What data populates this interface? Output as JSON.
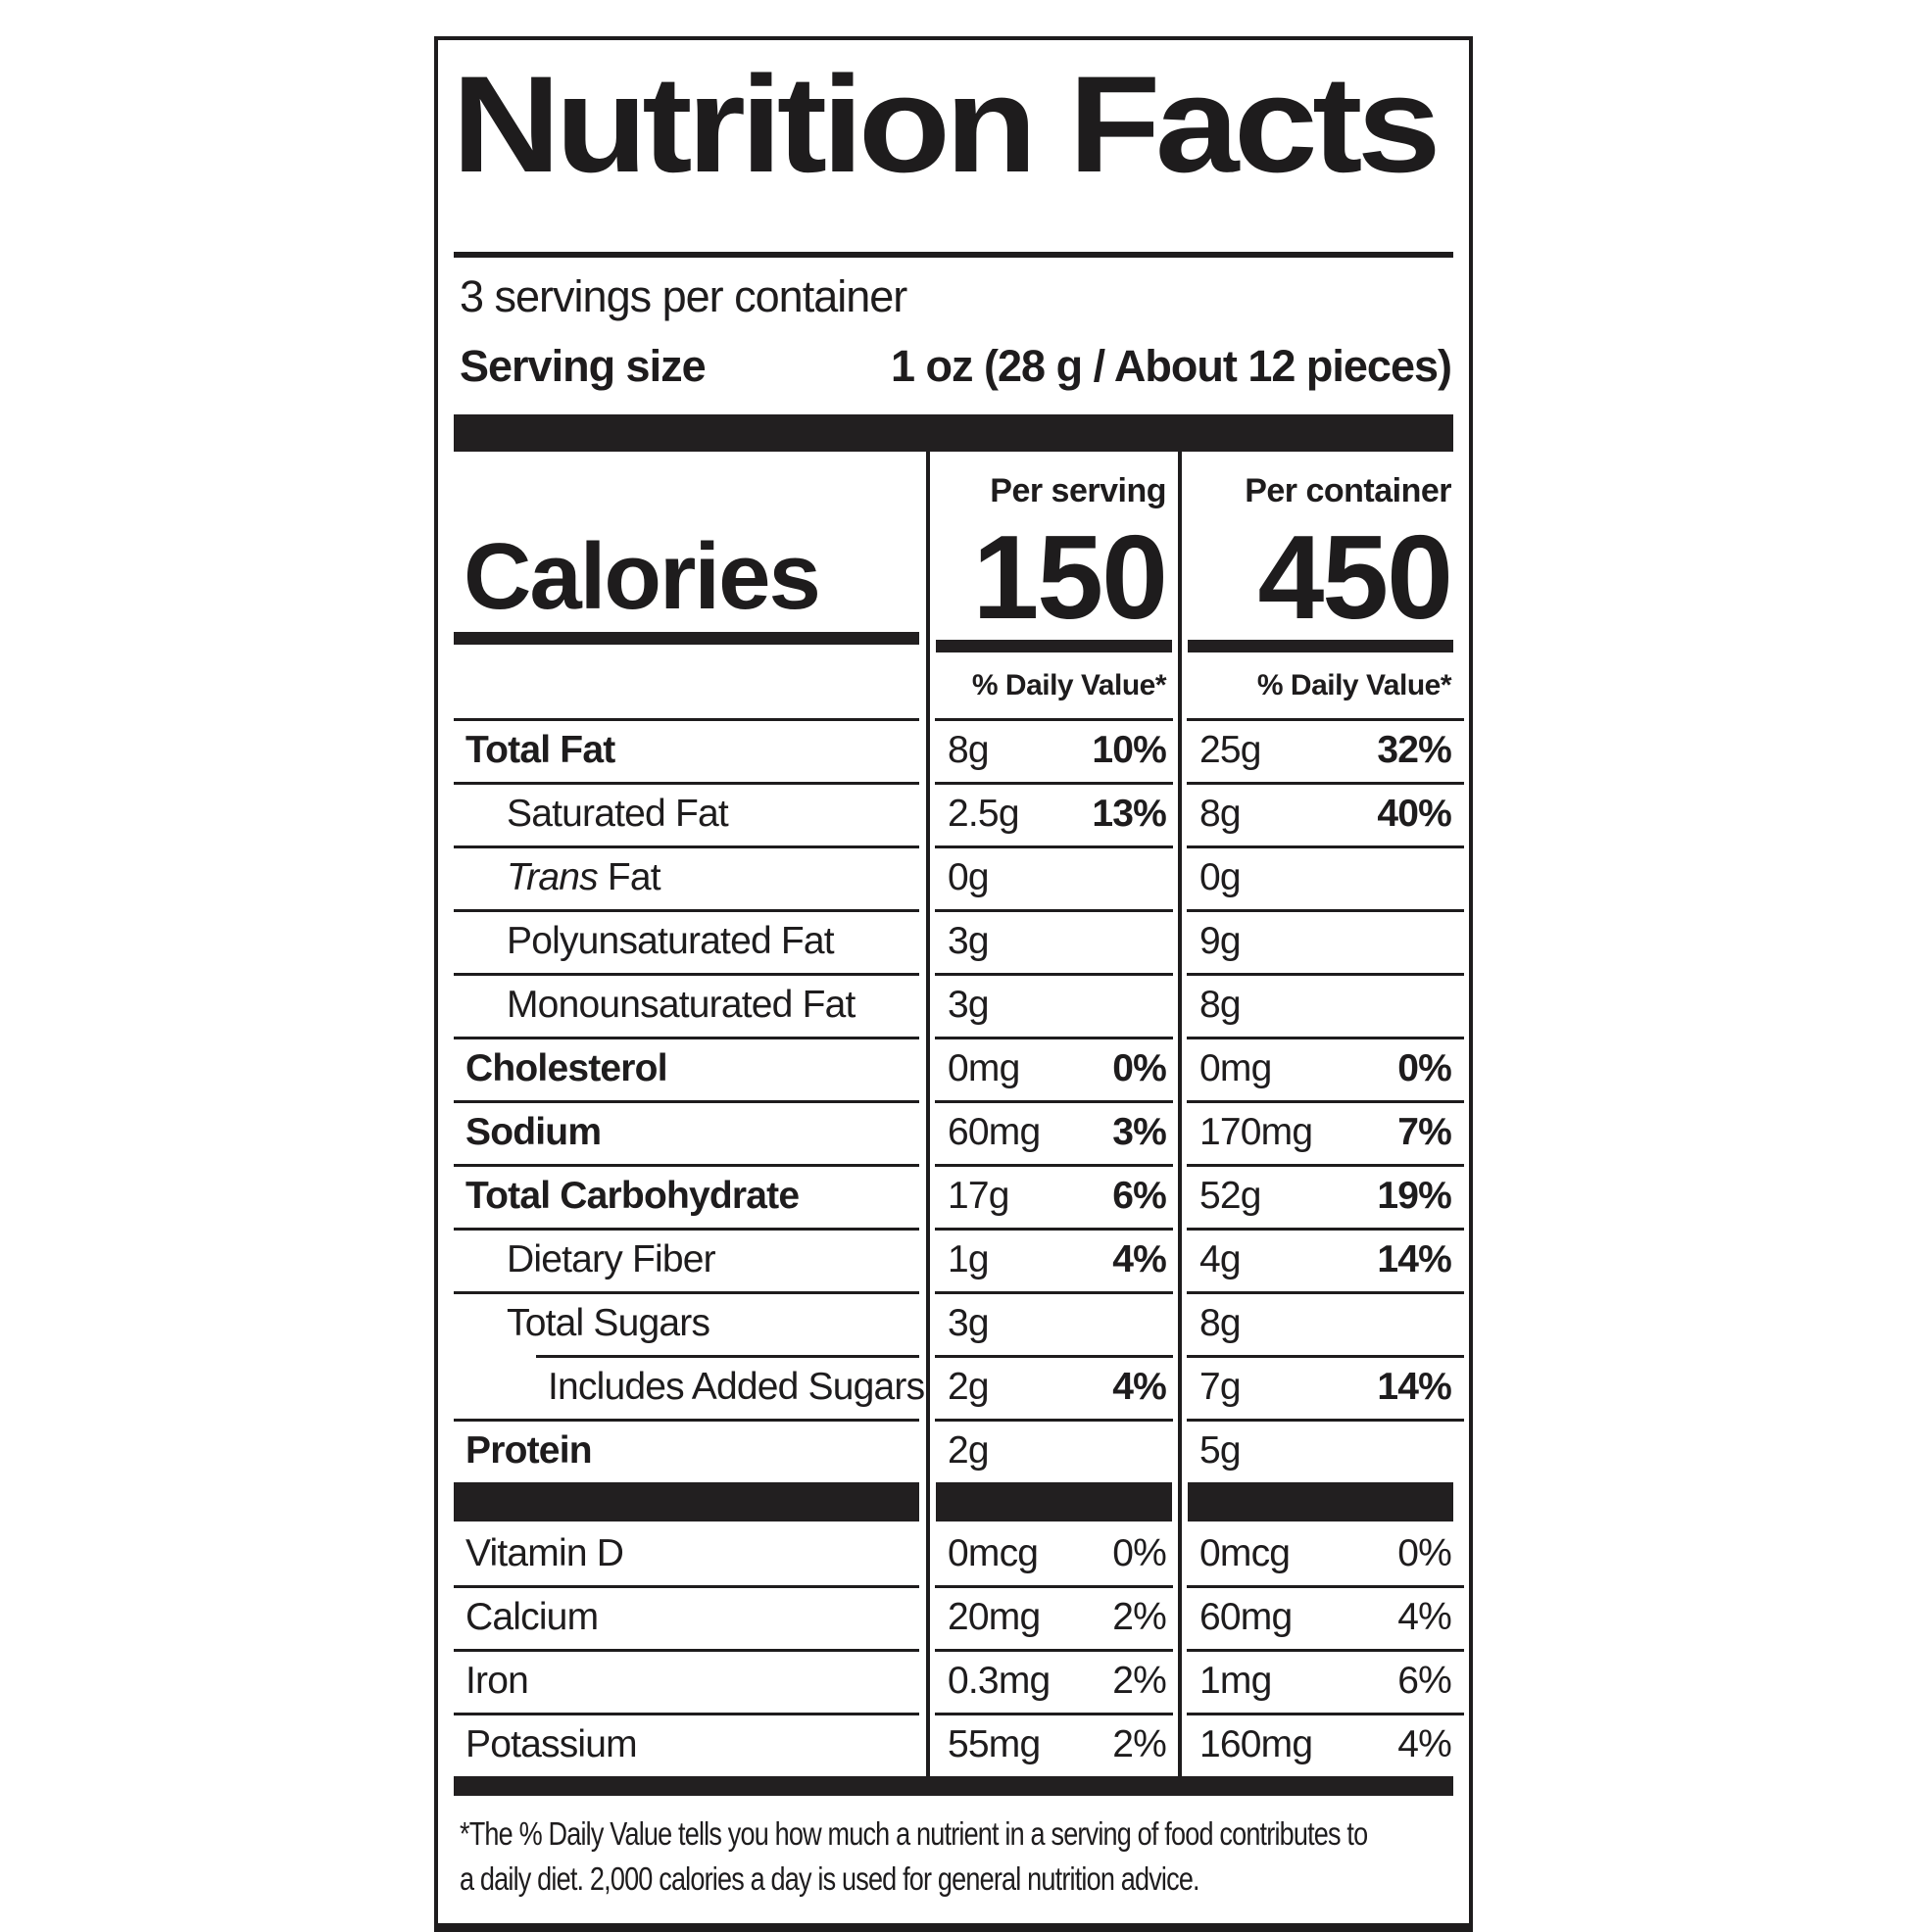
{
  "label": {
    "title": "Nutrition Facts",
    "servings_per_container": "3 servings per container",
    "serving_size_label": "Serving size",
    "serving_size_value": "1 oz (28 g / About 12 pieces)",
    "calories_label": "Calories",
    "footnote_lines": [
      "*The % Daily Value tells you how much a nutrient in a serving of food contributes to",
      "a daily diet. 2,000 calories a day is used for general nutrition advice."
    ]
  },
  "columns": {
    "per_serving": {
      "header": "Per serving",
      "calories": "150",
      "daily_value_header": "% Daily Value*"
    },
    "per_container": {
      "header": "Per container",
      "calories": "450",
      "daily_value_header": "% Daily Value*"
    }
  },
  "nutrients": {
    "main": [
      {
        "name": "Total Fat",
        "indent": 0,
        "bold": true,
        "per_serving": {
          "amount": "8g",
          "dv": "10%"
        },
        "per_container": {
          "amount": "25g",
          "dv": "32%"
        }
      },
      {
        "name": "Saturated Fat",
        "indent": 1,
        "bold": false,
        "per_serving": {
          "amount": "2.5g",
          "dv": "13%"
        },
        "per_container": {
          "amount": "8g",
          "dv": "40%"
        }
      },
      {
        "name": " Fat",
        "italic_prefix": "Trans",
        "indent": 1,
        "bold": false,
        "per_serving": {
          "amount": "0g",
          "dv": ""
        },
        "per_container": {
          "amount": "0g",
          "dv": ""
        }
      },
      {
        "name": "Polyunsaturated Fat",
        "indent": 1,
        "bold": false,
        "per_serving": {
          "amount": "3g",
          "dv": ""
        },
        "per_container": {
          "amount": "9g",
          "dv": ""
        }
      },
      {
        "name": "Monounsaturated Fat",
        "indent": 1,
        "bold": false,
        "per_serving": {
          "amount": "3g",
          "dv": ""
        },
        "per_container": {
          "amount": "8g",
          "dv": ""
        }
      },
      {
        "name": "Cholesterol",
        "indent": 0,
        "bold": true,
        "per_serving": {
          "amount": "0mg",
          "dv": "0%"
        },
        "per_container": {
          "amount": "0mg",
          "dv": "0%"
        }
      },
      {
        "name": "Sodium",
        "indent": 0,
        "bold": true,
        "per_serving": {
          "amount": "60mg",
          "dv": "3%"
        },
        "per_container": {
          "amount": "170mg",
          "dv": "7%"
        }
      },
      {
        "name": "Total Carbohydrate",
        "indent": 0,
        "bold": true,
        "per_serving": {
          "amount": "17g",
          "dv": "6%"
        },
        "per_container": {
          "amount": "52g",
          "dv": "19%"
        }
      },
      {
        "name": "Dietary Fiber",
        "indent": 1,
        "bold": false,
        "per_serving": {
          "amount": "1g",
          "dv": "4%"
        },
        "per_container": {
          "amount": "4g",
          "dv": "14%"
        }
      },
      {
        "name": "Total Sugars",
        "indent": 1,
        "bold": false,
        "per_serving": {
          "amount": "3g",
          "dv": ""
        },
        "per_container": {
          "amount": "8g",
          "dv": ""
        }
      },
      {
        "name": "Includes Added Sugars",
        "indent": 2,
        "bold": false,
        "indented_topline": true,
        "per_serving": {
          "amount": "2g",
          "dv": "4%"
        },
        "per_container": {
          "amount": "7g",
          "dv": "14%"
        }
      },
      {
        "name": "Protein",
        "indent": 0,
        "bold": true,
        "per_serving": {
          "amount": "2g",
          "dv": ""
        },
        "per_container": {
          "amount": "5g",
          "dv": ""
        }
      }
    ],
    "vitamins": [
      {
        "name": "Vitamin D",
        "indent": 0,
        "bold": false,
        "no_topline": true,
        "per_serving": {
          "amount": "0mcg",
          "dv": "0%"
        },
        "per_container": {
          "amount": "0mcg",
          "dv": "0%"
        }
      },
      {
        "name": "Calcium",
        "indent": 0,
        "bold": false,
        "per_serving": {
          "amount": "20mg",
          "dv": "2%"
        },
        "per_container": {
          "amount": "60mg",
          "dv": "4%"
        }
      },
      {
        "name": "Iron",
        "indent": 0,
        "bold": false,
        "per_serving": {
          "amount": "0.3mg",
          "dv": "2%"
        },
        "per_container": {
          "amount": "1mg",
          "dv": "6%"
        }
      },
      {
        "name": "Potassium",
        "indent": 0,
        "bold": false,
        "per_serving": {
          "amount": "55mg",
          "dv": "2%"
        },
        "per_container": {
          "amount": "160mg",
          "dv": "4%"
        }
      }
    ]
  },
  "colors": {
    "ink": "#1e1c1d",
    "bar": "#221f20",
    "background": "#ffffff"
  }
}
